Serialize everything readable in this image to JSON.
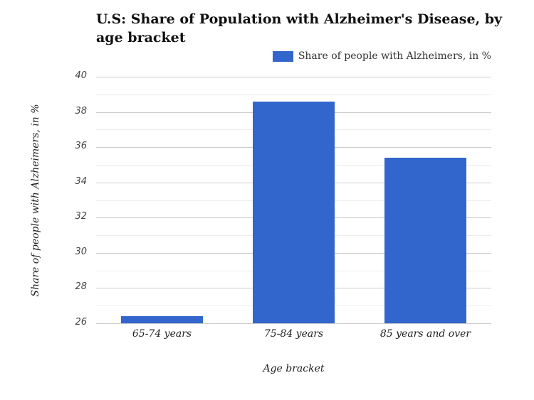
{
  "chart_data": {
    "type": "bar",
    "title": "U.S: Share of Population with Alzheimer's Disease, by age bracket",
    "categories": [
      "65-74 years",
      "75-84 years",
      "85 years and over"
    ],
    "series": [
      {
        "name": "Share of people with Alzheimers, in %",
        "values": [
          26.4,
          38.6,
          35.4
        ],
        "color": "#3366cc"
      }
    ],
    "xlabel": "Age bracket",
    "ylabel": "Share of people with Alzheimers, in %",
    "ylim": [
      26,
      40
    ],
    "yticks": [
      26,
      28,
      30,
      32,
      34,
      36,
      38,
      40
    ],
    "grid": true,
    "legend_position": "top-right"
  },
  "colors": {
    "bar": "#3366cc",
    "major_grid": "#cccccc",
    "minor_grid": "#ececec"
  }
}
